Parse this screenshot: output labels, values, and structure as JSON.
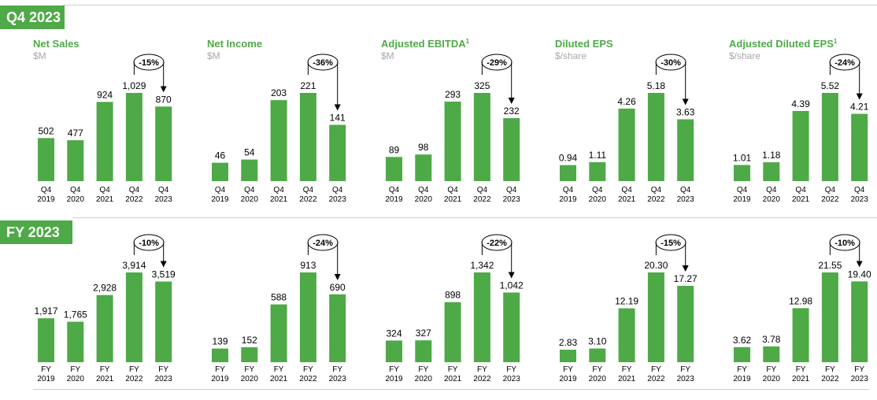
{
  "sections": [
    {
      "badge": "Q4 2023"
    },
    {
      "badge": "FY 2023"
    }
  ],
  "colors": {
    "bar": "#4ea947",
    "accent": "#4ea947",
    "unit": "#a8a8a8",
    "rule": "#cfcfcf"
  },
  "chart_data": [
    {
      "type": "bar",
      "title": "Net Sales",
      "title_sup": "",
      "unit": "$M",
      "categories": [
        "Q4 2019",
        "Q4 2020",
        "Q4 2021",
        "Q4 2022",
        "Q4 2023"
      ],
      "values": [
        502,
        477,
        924,
        1029,
        870
      ],
      "labels": [
        "502",
        "477",
        "924",
        "1,029",
        "870"
      ],
      "change": "-15%"
    },
    {
      "type": "bar",
      "title": "Net Income",
      "title_sup": "",
      "unit": "$M",
      "categories": [
        "Q4 2019",
        "Q4 2020",
        "Q4 2021",
        "Q4 2022",
        "Q4 2023"
      ],
      "values": [
        46,
        54,
        203,
        221,
        141
      ],
      "labels": [
        "46",
        "54",
        "203",
        "221",
        "141"
      ],
      "change": "-36%"
    },
    {
      "type": "bar",
      "title": "Adjusted EBITDA",
      "title_sup": "1",
      "unit": "$M",
      "categories": [
        "Q4 2019",
        "Q4 2020",
        "Q4 2021",
        "Q4 2022",
        "Q4 2023"
      ],
      "values": [
        89,
        98,
        293,
        325,
        232
      ],
      "labels": [
        "89",
        "98",
        "293",
        "325",
        "232"
      ],
      "change": "-29%"
    },
    {
      "type": "bar",
      "title": "Diluted EPS",
      "title_sup": "",
      "unit": "$/share",
      "categories": [
        "Q4 2019",
        "Q4 2020",
        "Q4 2021",
        "Q4 2022",
        "Q4 2023"
      ],
      "values": [
        0.94,
        1.11,
        4.26,
        5.18,
        3.63
      ],
      "labels": [
        "0.94",
        "1.11",
        "4.26",
        "5.18",
        "3.63"
      ],
      "change": "-30%"
    },
    {
      "type": "bar",
      "title": "Adjusted Diluted EPS",
      "title_sup": "1",
      "unit": "$/share",
      "categories": [
        "Q4 2019",
        "Q4 2020",
        "Q4 2021",
        "Q4 2022",
        "Q4 2023"
      ],
      "values": [
        1.01,
        1.18,
        4.39,
        5.52,
        4.21
      ],
      "labels": [
        "1.01",
        "1.18",
        "4.39",
        "5.52",
        "4.21"
      ],
      "change": "-24%"
    },
    {
      "type": "bar",
      "title": "",
      "title_sup": "",
      "unit": "",
      "categories": [
        "FY 2019",
        "FY 2020",
        "FY 2021",
        "FY 2022",
        "FY 2023"
      ],
      "values": [
        1917,
        1765,
        2928,
        3914,
        3519
      ],
      "labels": [
        "1,917",
        "1,765",
        "2,928",
        "3,914",
        "3,519"
      ],
      "change": "-10%"
    },
    {
      "type": "bar",
      "title": "",
      "title_sup": "",
      "unit": "",
      "categories": [
        "FY 2019",
        "FY 2020",
        "FY 2021",
        "FY 2022",
        "FY 2023"
      ],
      "values": [
        139,
        152,
        588,
        913,
        690
      ],
      "labels": [
        "139",
        "152",
        "588",
        "913",
        "690"
      ],
      "change": "-24%"
    },
    {
      "type": "bar",
      "title": "",
      "title_sup": "",
      "unit": "",
      "categories": [
        "FY 2019",
        "FY 2020",
        "FY 2021",
        "FY 2022",
        "FY 2023"
      ],
      "values": [
        324,
        327,
        898,
        1342,
        1042
      ],
      "labels": [
        "324",
        "327",
        "898",
        "1,342",
        "1,042"
      ],
      "change": "-22%"
    },
    {
      "type": "bar",
      "title": "",
      "title_sup": "",
      "unit": "",
      "categories": [
        "FY 2019",
        "FY 2020",
        "FY 2021",
        "FY 2022",
        "FY 2023"
      ],
      "values": [
        2.83,
        3.1,
        12.19,
        20.3,
        17.27
      ],
      "labels": [
        "2.83",
        "3.10",
        "12.19",
        "20.30",
        "17.27"
      ],
      "change": "-15%"
    },
    {
      "type": "bar",
      "title": "",
      "title_sup": "",
      "unit": "",
      "categories": [
        "FY 2019",
        "FY 2020",
        "FY 2021",
        "FY 2022",
        "FY 2023"
      ],
      "values": [
        3.62,
        3.78,
        12.98,
        21.55,
        19.4
      ],
      "labels": [
        "3.62",
        "3.78",
        "12.98",
        "21.55",
        "19.40"
      ],
      "change": "-10%"
    }
  ]
}
